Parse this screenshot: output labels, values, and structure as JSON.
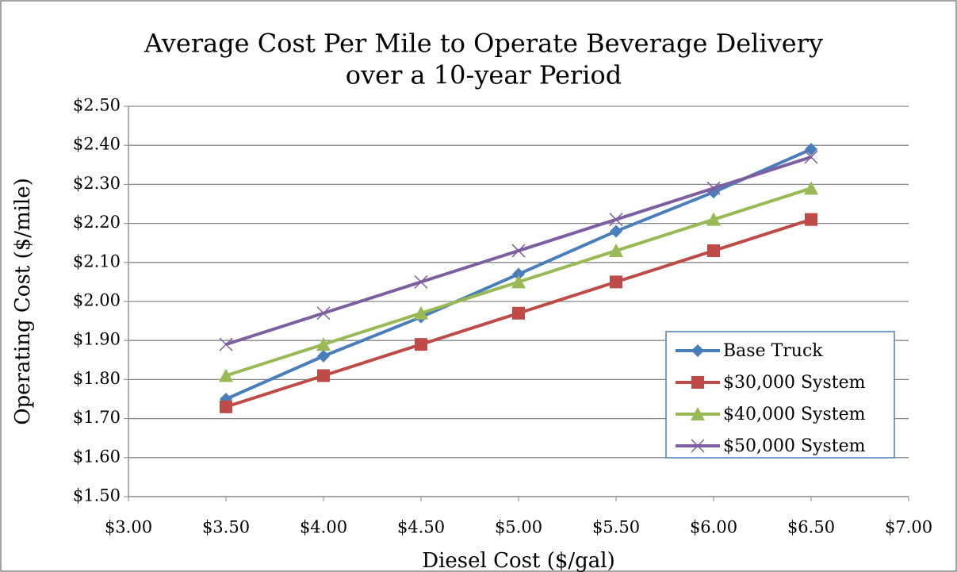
{
  "chart_data": {
    "type": "line",
    "title": [
      "Average Cost Per Mile to Operate Beverage Delivery",
      "over a 10-year Period"
    ],
    "xlabel": "Diesel Cost ($/gal)",
    "ylabel": "Operating Cost ($/mile)",
    "x": [
      3.5,
      4.0,
      4.5,
      5.0,
      5.5,
      6.0,
      6.5
    ],
    "series": [
      {
        "name": "Base Truck",
        "color": "#4a7ebb",
        "marker": "diamond",
        "values": [
          1.75,
          1.86,
          1.96,
          2.07,
          2.18,
          2.28,
          2.39
        ]
      },
      {
        "name": "$30,000 System",
        "color": "#be4b48",
        "marker": "square",
        "values": [
          1.73,
          1.81,
          1.89,
          1.97,
          2.05,
          2.13,
          2.21
        ]
      },
      {
        "name": "$40,000 System",
        "color": "#98b954",
        "marker": "triangle",
        "values": [
          1.81,
          1.89,
          1.97,
          2.05,
          2.13,
          2.21,
          2.29
        ]
      },
      {
        "name": "$50,000 System",
        "color": "#7d5fa0",
        "marker": "x",
        "values": [
          1.89,
          1.97,
          2.05,
          2.13,
          2.21,
          2.29,
          2.37
        ]
      }
    ],
    "xlim": [
      3,
      7
    ],
    "xticks": [
      {
        "value": 3,
        "label": "$3.00"
      },
      {
        "value": 3.5,
        "label": "$3.50"
      },
      {
        "value": 4,
        "label": "$4.00"
      },
      {
        "value": 4.5,
        "label": "$4.50"
      },
      {
        "value": 5,
        "label": "$5.00"
      },
      {
        "value": 5.5,
        "label": "$5.50"
      },
      {
        "value": 6,
        "label": "$6.00"
      },
      {
        "value": 6.5,
        "label": "$6.50"
      },
      {
        "value": 7,
        "label": "$7.00"
      }
    ],
    "ylim": [
      1.5,
      2.5
    ],
    "yticks": [
      {
        "value": 1.5,
        "label": "$1.50"
      },
      {
        "value": 1.6,
        "label": "$1.60"
      },
      {
        "value": 1.7,
        "label": "$1.70"
      },
      {
        "value": 1.8,
        "label": "$1.80"
      },
      {
        "value": 1.9,
        "label": "$1.90"
      },
      {
        "value": 2.0,
        "label": "$2.00"
      },
      {
        "value": 2.1,
        "label": "$2.10"
      },
      {
        "value": 2.2,
        "label": "$2.20"
      },
      {
        "value": 2.3,
        "label": "$2.30"
      },
      {
        "value": 2.4,
        "label": "$2.40"
      },
      {
        "value": 2.5,
        "label": "$2.50"
      }
    ],
    "grid": true,
    "legend": "lower right"
  }
}
